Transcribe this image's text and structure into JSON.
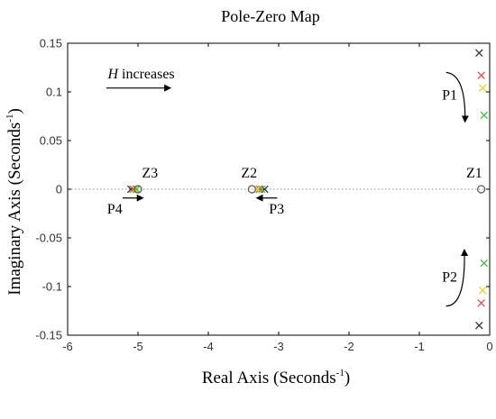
{
  "chart_data": {
    "type": "scatter",
    "title": "Pole-Zero Map",
    "xlabel": "Real Axis (Seconds",
    "ylabel": "Imaginary Axis (Seconds",
    "label_superscript": "-1",
    "label_close": ")",
    "xlim": [
      -6,
      0
    ],
    "ylim": [
      -0.15,
      0.15
    ],
    "xticks": [
      -6,
      -5,
      -4,
      -3,
      -2,
      -1,
      0
    ],
    "xtick_labels": [
      "-6",
      "-5",
      "-4",
      "-3",
      "-2",
      "-1",
      "0"
    ],
    "yticks": [
      0.15,
      0.1,
      0.05,
      0,
      -0.05,
      -0.1,
      -0.15
    ],
    "ytick_labels": [
      "0.15",
      "0.1",
      "0.05",
      "0",
      "-0.05",
      "-0.1",
      "-0.15"
    ],
    "zero_line": "dotted",
    "colors": {
      "black": "#333333",
      "red": "#e84a4a",
      "yellow": "#e8d23c",
      "green": "#3fbf3f",
      "purple": "#7a5fc8",
      "zero": "#555555",
      "arrow": "#000000"
    },
    "series": [
      {
        "marker": "x",
        "color": "black",
        "points": [
          [
            -0.15,
            0.14
          ],
          [
            -0.15,
            -0.14
          ],
          [
            -5.1,
            0
          ],
          [
            -3.2,
            0
          ]
        ]
      },
      {
        "marker": "x",
        "color": "red",
        "points": [
          [
            -0.12,
            0.117
          ],
          [
            -0.12,
            -0.117
          ],
          [
            -5.07,
            0
          ],
          [
            -3.27,
            0
          ]
        ]
      },
      {
        "marker": "x",
        "color": "yellow",
        "points": [
          [
            -0.1,
            0.104
          ],
          [
            -0.1,
            -0.104
          ],
          [
            -5.04,
            0
          ],
          [
            -3.3,
            0
          ]
        ]
      },
      {
        "marker": "x",
        "color": "green",
        "points": [
          [
            -0.08,
            0.076
          ],
          [
            -0.08,
            -0.076
          ],
          [
            -5.02,
            0
          ],
          [
            -3.24,
            0
          ]
        ]
      },
      {
        "marker": "o",
        "color": "zero",
        "points": [
          [
            -0.12,
            0
          ],
          [
            -5.0,
            0
          ],
          [
            -3.38,
            0
          ]
        ]
      }
    ],
    "annotations": [
      {
        "text": "Z1",
        "x": -0.22,
        "y": 0.012
      },
      {
        "text": "Z2",
        "x": -3.42,
        "y": 0.012
      },
      {
        "text": "Z3",
        "x": -4.83,
        "y": 0.012
      },
      {
        "text": "P1",
        "x": -0.57,
        "y": 0.092
      },
      {
        "text": "P2",
        "x": -0.57,
        "y": -0.095
      },
      {
        "text": "P3",
        "x": -3.03,
        "y": -0.025
      },
      {
        "text": "P4",
        "x": -5.33,
        "y": -0.025
      }
    ],
    "legend_note": {
      "italic": "H",
      "text": " increases",
      "x": -5.43,
      "y": 0.114
    }
  }
}
